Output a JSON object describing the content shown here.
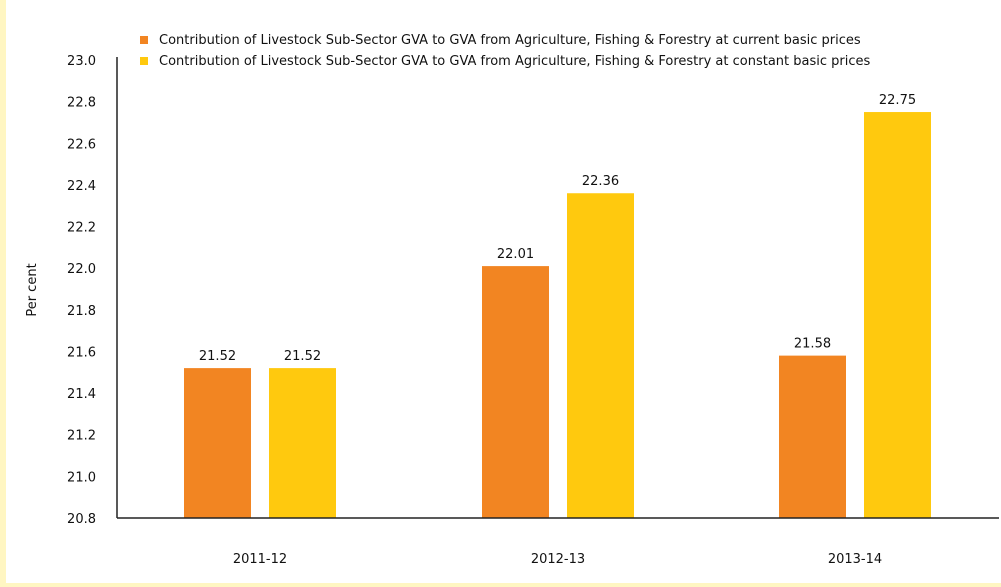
{
  "chart_data": {
    "type": "bar",
    "categories": [
      "2011-12",
      "2012-13",
      "2013-14"
    ],
    "series": [
      {
        "name": "Contribution of Livestock Sub-Sector GVA to GVA from Agriculture, Fishing & Forestry at current basic prices",
        "values": [
          21.52,
          22.01,
          21.58
        ],
        "labels": [
          "21.52",
          "22.01",
          "21.58"
        ],
        "color": "#f28522"
      },
      {
        "name": "Contribution of Livestock Sub-Sector GVA to GVA from Agriculture, Fishing & Forestry at constant basic prices",
        "values": [
          21.52,
          22.36,
          22.75
        ],
        "labels": [
          "21.52",
          "22.36",
          "22.75"
        ],
        "color": "#ffc90e"
      }
    ],
    "ylabel": "Per cent",
    "xlabel": "",
    "ylim": [
      20.8,
      23.0
    ],
    "yticks": [
      "20.8",
      "21.0",
      "21.2",
      "21.4",
      "21.6",
      "21.8",
      "22.0",
      "22.2",
      "22.4",
      "22.6",
      "22.8",
      "23.0"
    ],
    "grid": false,
    "legend": "top"
  },
  "colors": {
    "page_background": "#fff6c2",
    "plot_background": "#ffffff",
    "axis": "#222222"
  }
}
